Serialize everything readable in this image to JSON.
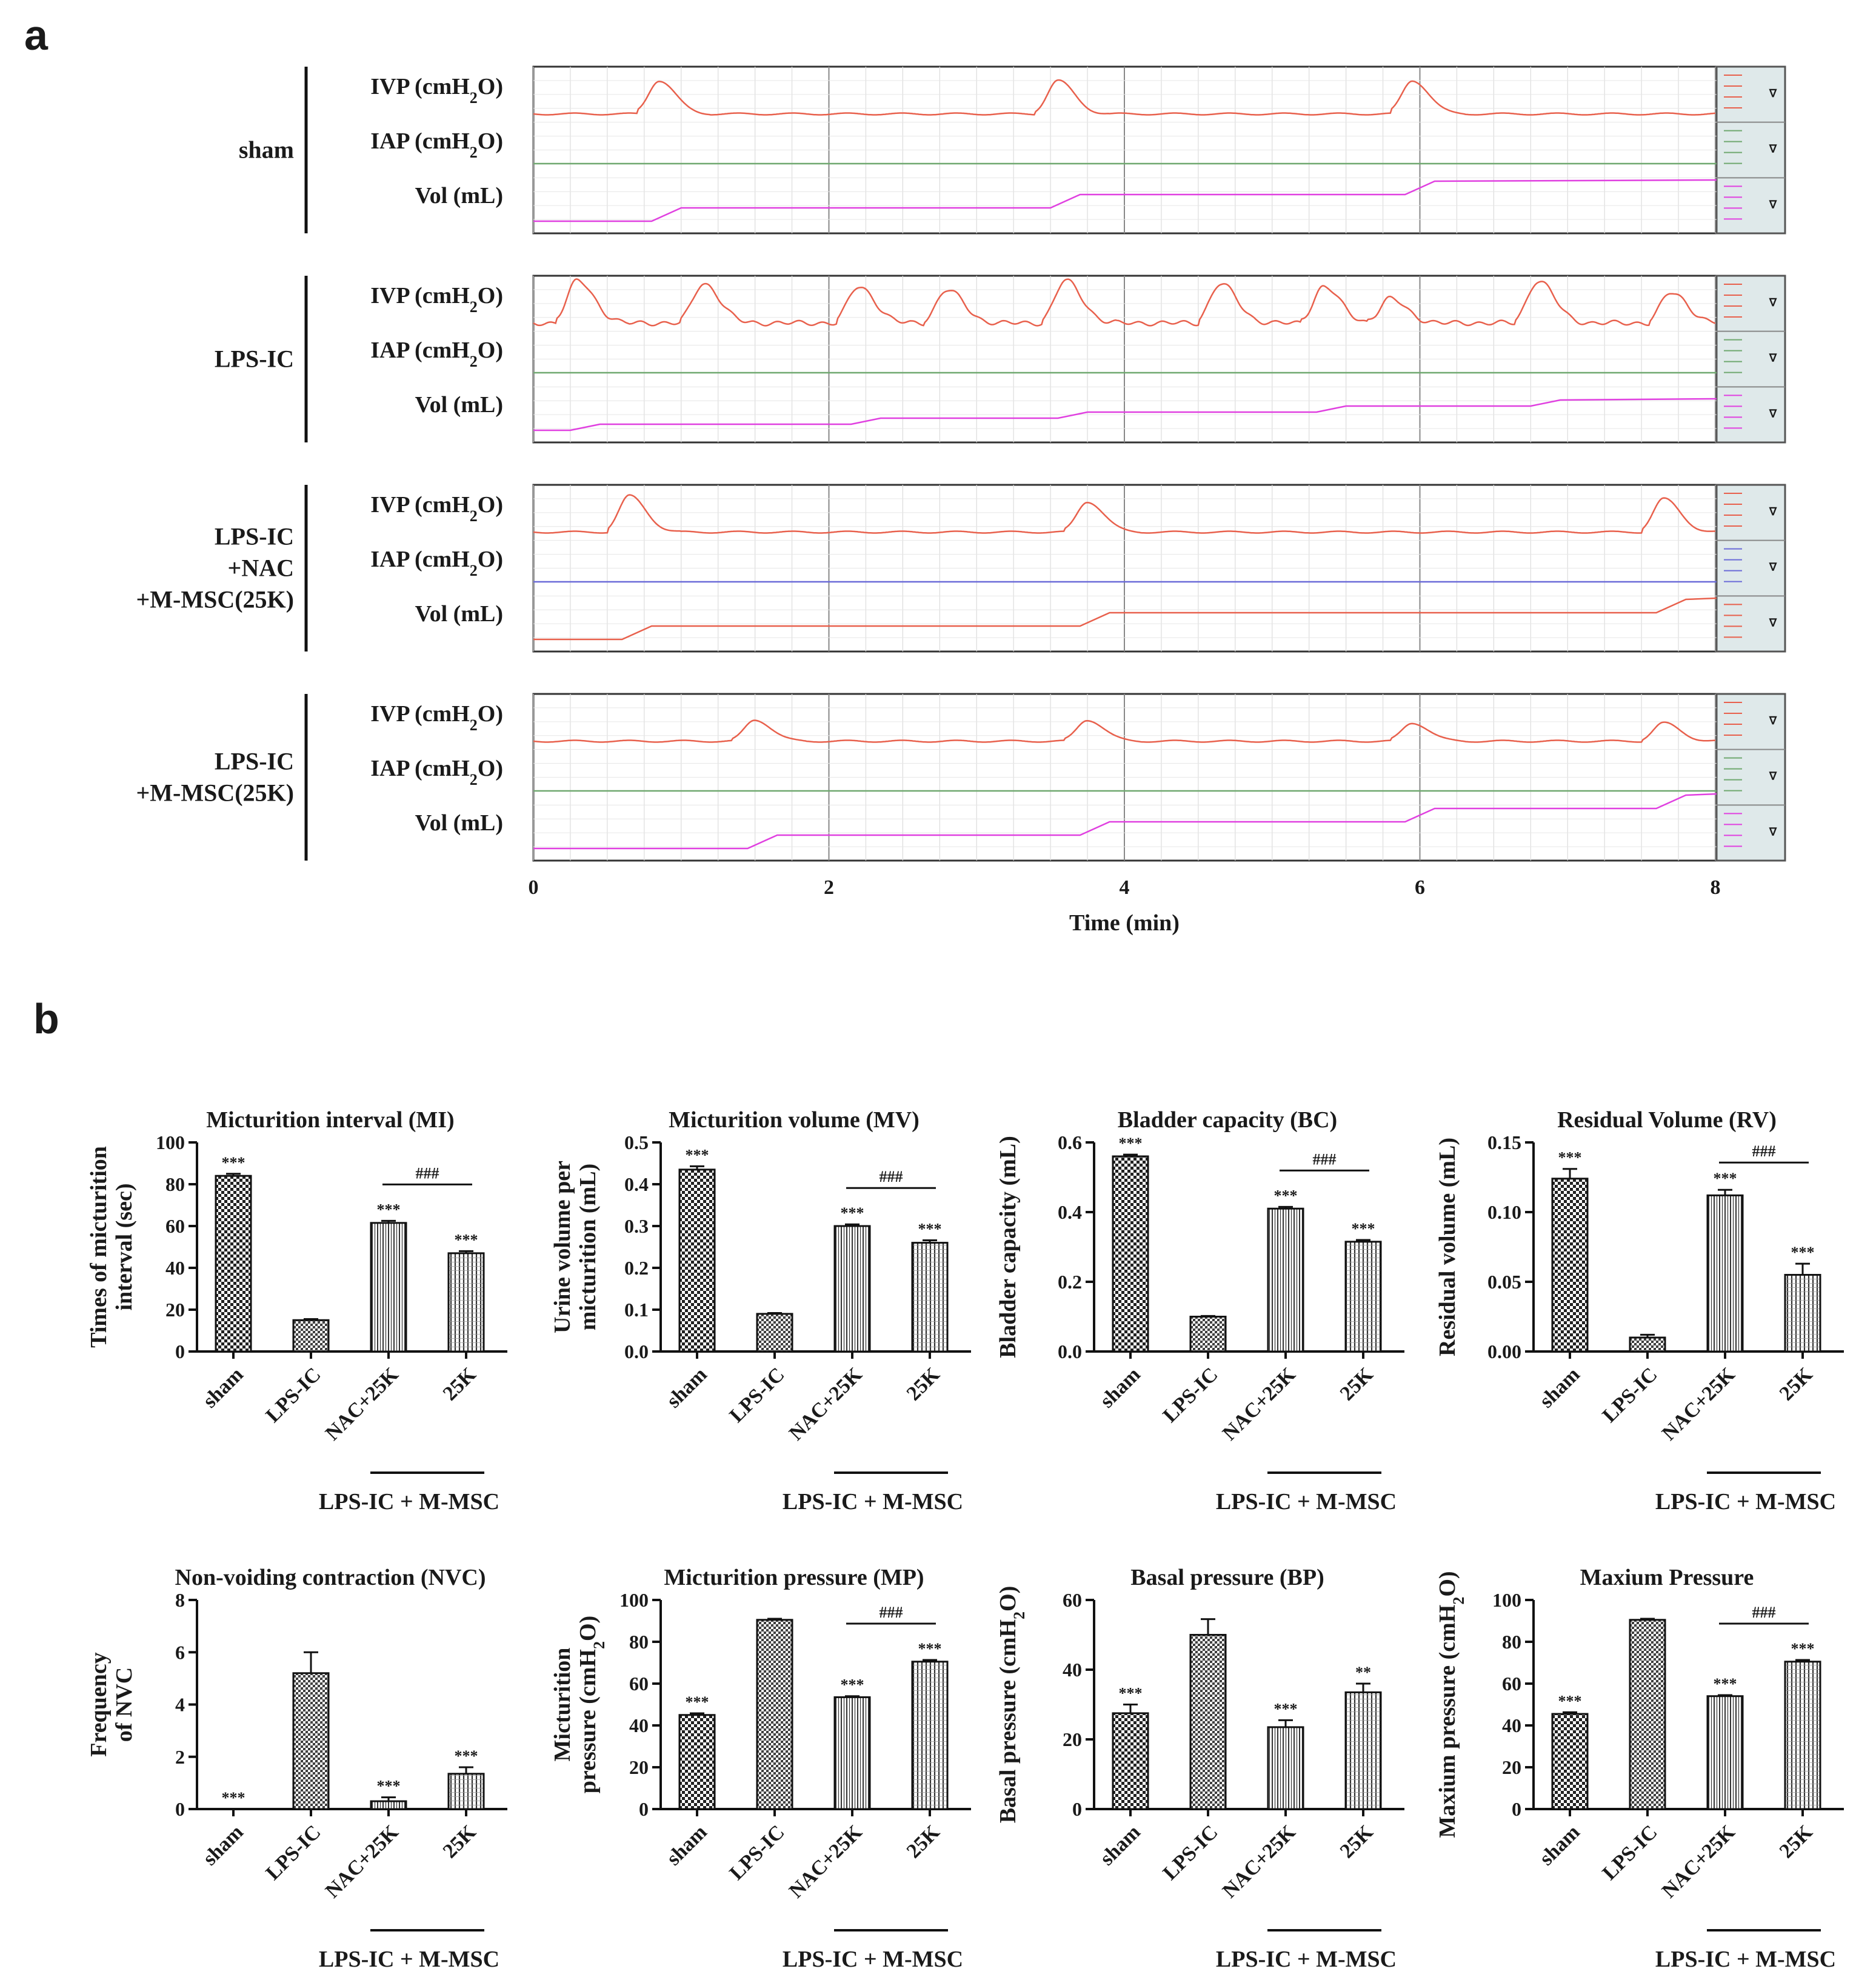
{
  "panel_labels": {
    "a": "a",
    "b": "b"
  },
  "panel_a": {
    "channels": [
      {
        "name": "IVP (cmH",
        "sub": "2",
        "suffix": "O)"
      },
      {
        "name": "IAP (cmH",
        "sub": "2",
        "suffix": "O)"
      },
      {
        "name": "Vol (mL)",
        "sub": "",
        "suffix": ""
      }
    ],
    "groups": [
      {
        "lines": [
          "sham"
        ]
      },
      {
        "lines": [
          "LPS-IC"
        ]
      },
      {
        "lines": [
          "LPS-IC",
          "+NAC",
          "+M-MSC(25K)"
        ]
      },
      {
        "lines": [
          "LPS-IC",
          "+M-MSC(25K)"
        ]
      }
    ],
    "x_ticks": [
      "0",
      "2",
      "4",
      "6",
      "8"
    ],
    "x_label": "Time (min)",
    "colors": {
      "ivp": "#e8604c",
      "iap": "#6fa86f",
      "iap_alt": "#6a6ad8",
      "vol": "#e040e0",
      "vol_alt": "#e8604c",
      "legend_bg": "#dfe9ea"
    }
  },
  "chart_data": [
    {
      "type": "bar",
      "title": "Micturition interval (MI)",
      "ylabel": [
        "Times of micturition",
        "interval (sec)"
      ],
      "ylabel_sub": null,
      "categories": [
        "sham",
        "LPS-IC",
        "NAC+25K",
        "25K"
      ],
      "values": [
        84,
        15,
        61.5,
        47
      ],
      "errors": [
        1,
        0.5,
        1,
        1
      ],
      "ylim": [
        0,
        100
      ],
      "yticks": [
        "0",
        "20",
        "40",
        "60",
        "80",
        "100"
      ],
      "stars": [
        "***",
        "",
        "***",
        "***"
      ],
      "hash": "###",
      "bracket_label": "LPS-IC + M-MSC"
    },
    {
      "type": "bar",
      "title": "Micturition volume (MV)",
      "ylabel": [
        "Urine volume per",
        "micturition (mL)"
      ],
      "ylabel_sub": null,
      "categories": [
        "sham",
        "LPS-IC",
        "NAC+25K",
        "25K"
      ],
      "values": [
        0.435,
        0.09,
        0.3,
        0.26
      ],
      "errors": [
        0.008,
        0.002,
        0.004,
        0.006
      ],
      "ylim": [
        0,
        0.5
      ],
      "yticks": [
        "0.0",
        "0.1",
        "0.2",
        "0.3",
        "0.4",
        "0.5"
      ],
      "stars": [
        "***",
        "",
        "***",
        "***"
      ],
      "hash": "###",
      "bracket_label": "LPS-IC + M-MSC"
    },
    {
      "type": "bar",
      "title": "Bladder capacity (BC)",
      "ylabel": [
        "Bladder capacity (mL)"
      ],
      "ylabel_sub": null,
      "categories": [
        "sham",
        "LPS-IC",
        "NAC+25K",
        "25K"
      ],
      "values": [
        0.56,
        0.1,
        0.41,
        0.315
      ],
      "errors": [
        0.005,
        0.002,
        0.005,
        0.005
      ],
      "ylim": [
        0,
        0.6
      ],
      "yticks": [
        "0.0",
        "0.2",
        "0.4",
        "0.6"
      ],
      "stars": [
        "***",
        "",
        "***",
        "***"
      ],
      "hash": "###",
      "bracket_label": "LPS-IC + M-MSC"
    },
    {
      "type": "bar",
      "title": "Residual Volume (RV)",
      "ylabel": [
        "Residual volume (mL)"
      ],
      "ylabel_sub": null,
      "categories": [
        "sham",
        "LPS-IC",
        "NAC+25K",
        "25K"
      ],
      "values": [
        0.124,
        0.01,
        0.112,
        0.055
      ],
      "errors": [
        0.007,
        0.002,
        0.004,
        0.008
      ],
      "ylim": [
        0,
        0.15
      ],
      "yticks": [
        "0.00",
        "0.05",
        "0.10",
        "0.15"
      ],
      "stars": [
        "***",
        "",
        "***",
        "***"
      ],
      "hash": "###",
      "bracket_label": "LPS-IC + M-MSC"
    },
    {
      "type": "bar",
      "title": "Non-voiding contraction (NVC)",
      "ylabel": [
        "Frequency",
        "of NVC"
      ],
      "ylabel_sub": null,
      "categories": [
        "sham",
        "LPS-IC",
        "NAC+25K",
        "25K"
      ],
      "values": [
        0,
        5.2,
        0.3,
        1.35
      ],
      "errors": [
        0,
        0.8,
        0.15,
        0.25
      ],
      "ylim": [
        0,
        8
      ],
      "yticks": [
        "0",
        "2",
        "4",
        "6",
        "8"
      ],
      "stars": [
        "***",
        "",
        "***",
        "***"
      ],
      "hash": "",
      "bracket_label": "LPS-IC + M-MSC"
    },
    {
      "type": "bar",
      "title": "Micturition pressure (MP)",
      "ylabel": [
        "Micturition",
        "pressure (cmH2O)"
      ],
      "ylabel_sub": "2",
      "categories": [
        "sham",
        "LPS-IC",
        "NAC+25K",
        "25K"
      ],
      "values": [
        45,
        90.5,
        53.5,
        70.5
      ],
      "errors": [
        0.8,
        0.5,
        0.5,
        0.8
      ],
      "ylim": [
        0,
        100
      ],
      "yticks": [
        "0",
        "20",
        "40",
        "60",
        "80",
        "100"
      ],
      "stars": [
        "***",
        "",
        "***",
        "***"
      ],
      "hash": "###",
      "bracket_label": "LPS-IC + M-MSC"
    },
    {
      "type": "bar",
      "title": "Basal pressure (BP)",
      "ylabel": [
        "Basal pressure (cmH2O)"
      ],
      "ylabel_sub": "2",
      "categories": [
        "sham",
        "LPS-IC",
        "NAC+25K",
        "25K"
      ],
      "values": [
        27.5,
        50,
        23.5,
        33.5
      ],
      "errors": [
        2.5,
        4.5,
        2,
        2.5
      ],
      "ylim": [
        0,
        60
      ],
      "yticks": [
        "0",
        "20",
        "40",
        "60"
      ],
      "stars": [
        "***",
        "",
        "***",
        "**"
      ],
      "hash": "",
      "bracket_label": "LPS-IC + M-MSC"
    },
    {
      "type": "bar",
      "title": "Maxium Pressure",
      "ylabel": [
        "Maxium pressure (cmH2O)"
      ],
      "ylabel_sub": "2",
      "categories": [
        "sham",
        "LPS-IC",
        "NAC+25K",
        "25K"
      ],
      "values": [
        45.5,
        90.5,
        54,
        70.5
      ],
      "errors": [
        0.8,
        0.5,
        0.5,
        0.8
      ],
      "ylim": [
        0,
        100
      ],
      "yticks": [
        "0",
        "20",
        "40",
        "60",
        "80",
        "100"
      ],
      "stars": [
        "***",
        "",
        "***",
        "***"
      ],
      "hash": "###",
      "bracket_label": "LPS-IC + M-MSC"
    }
  ]
}
